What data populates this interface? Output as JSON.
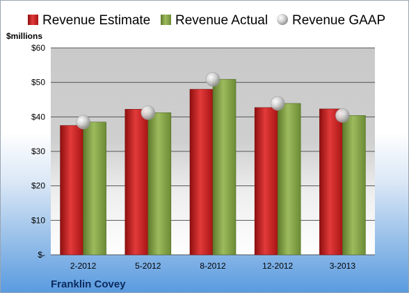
{
  "chart_data": {
    "type": "bar",
    "title": "",
    "unit_label": "$millions",
    "company": "Franklin Covey",
    "categories": [
      "2-2012",
      "5-2012",
      "8-2012",
      "12-2012",
      "3-2013"
    ],
    "series": [
      {
        "name": "Revenue Estimate",
        "kind": "bar",
        "color": "#cc1f1f",
        "values": [
          37.5,
          42.2,
          48.0,
          42.7,
          42.3
        ]
      },
      {
        "name": "Revenue Actual",
        "kind": "bar",
        "color": "#86a84a",
        "values": [
          38.5,
          41.2,
          50.9,
          43.9,
          40.4
        ]
      },
      {
        "name": "Revenue GAAP",
        "kind": "marker",
        "color": "#c8c8c8",
        "values": [
          38.5,
          41.2,
          50.9,
          43.9,
          40.4
        ]
      }
    ],
    "ylim": [
      0,
      60
    ],
    "yticks": [
      0,
      10,
      20,
      30,
      40,
      50,
      60
    ],
    "ytick_labels": [
      "$-",
      "$10",
      "$20",
      "$30",
      "$40",
      "$50",
      "$60"
    ],
    "grid": true,
    "legend": "top"
  }
}
